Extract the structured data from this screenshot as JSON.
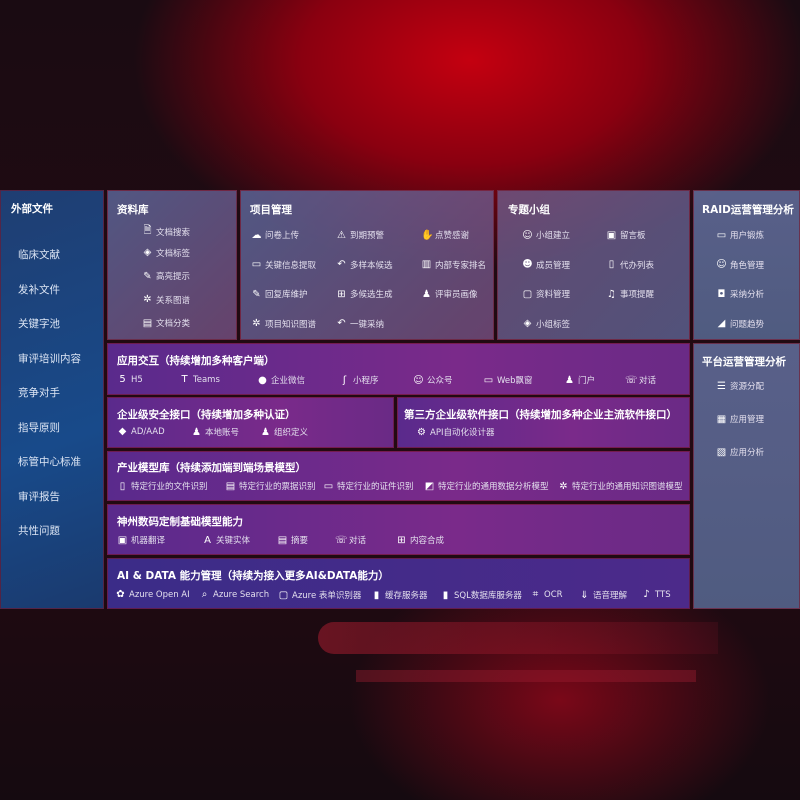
{
  "left": {
    "title": "外部文件",
    "items": [
      "临床文献",
      "发补文件",
      "关键字池",
      "审评培训内容",
      "竞争对手",
      "指导原则",
      "标管中心标准",
      "审评报告",
      "共性问题"
    ]
  },
  "library": {
    "title": "资料库",
    "items": [
      {
        "icon": "doc-search-icon",
        "label": "文档搜索"
      },
      {
        "icon": "tag-icon",
        "label": "文档标签"
      },
      {
        "icon": "pen-icon",
        "label": "高亮提示"
      },
      {
        "icon": "graph-icon",
        "label": "关系图谱"
      },
      {
        "icon": "doc-list-icon",
        "label": "文档分类"
      }
    ]
  },
  "project": {
    "title": "项目管理",
    "items": [
      {
        "icon": "cloud-upload-icon",
        "label": "问卷上传"
      },
      {
        "icon": "alarm-icon",
        "label": "到期预警"
      },
      {
        "icon": "thumbs-up-icon",
        "label": "点赞感谢"
      },
      {
        "icon": "window-icon",
        "label": "关键信息提取"
      },
      {
        "icon": "reply-icon",
        "label": "多样本候选"
      },
      {
        "icon": "ranking-icon",
        "label": "内部专家排名"
      },
      {
        "icon": "edit-icon",
        "label": "回复库维护"
      },
      {
        "icon": "puzzle-icon",
        "label": "多候选生成"
      },
      {
        "icon": "user-icon",
        "label": "评审员画像"
      },
      {
        "icon": "graph-icon",
        "label": "项目知识图谱"
      },
      {
        "icon": "reply-icon",
        "label": "一键采纳"
      }
    ]
  },
  "group": {
    "title": "专题小组",
    "items": [
      {
        "icon": "users-icon",
        "label": "小组建立"
      },
      {
        "icon": "bbs-icon",
        "label": "留言板"
      },
      {
        "icon": "user-add-icon",
        "label": "成员管理"
      },
      {
        "icon": "clipboard-icon",
        "label": "代办列表"
      },
      {
        "icon": "folder-icon",
        "label": "资料管理"
      },
      {
        "icon": "bell-icon",
        "label": "事项提醒"
      },
      {
        "icon": "tag-icon",
        "label": "小组标签"
      }
    ]
  },
  "raid": {
    "title": "RAID运营管理分析",
    "items": [
      {
        "icon": "id-card-icon",
        "label": "用户锻炼"
      },
      {
        "icon": "users-icon",
        "label": "角色管理"
      },
      {
        "icon": "qa-icon",
        "label": "采纳分析"
      },
      {
        "icon": "chart-icon",
        "label": "问题趋势"
      }
    ]
  },
  "platform": {
    "title": "平台运营管理分析",
    "items": [
      {
        "icon": "list-icon",
        "label": "资源分配"
      },
      {
        "icon": "apps-icon",
        "label": "应用管理"
      },
      {
        "icon": "analysis-icon",
        "label": "应用分析"
      }
    ]
  },
  "app": {
    "title": "应用交互（持续增加多种客户端）",
    "items": [
      {
        "icon": "html5-icon",
        "label": "H5"
      },
      {
        "icon": "teams-icon",
        "label": "Teams"
      },
      {
        "icon": "wechat-work-icon",
        "label": "企业微信"
      },
      {
        "icon": "miniprogram-icon",
        "label": "小程序"
      },
      {
        "icon": "official-account-icon",
        "label": "公众号"
      },
      {
        "icon": "window-icon",
        "label": "Web飘窗"
      },
      {
        "icon": "portal-icon",
        "label": "门户"
      },
      {
        "icon": "chat-icon",
        "label": "对话"
      }
    ]
  },
  "security": {
    "title": "企业级安全接口（持续增加多种认证）",
    "items": [
      {
        "icon": "aad-icon",
        "label": "AD/AAD"
      },
      {
        "icon": "local-account-icon",
        "label": "本地账号"
      },
      {
        "icon": "org-icon",
        "label": "组织定义"
      }
    ]
  },
  "third": {
    "title": "第三方企业级软件接口（持续增加多种企业主流软件接口）",
    "items": [
      {
        "icon": "gear-icon",
        "label": "API自动化设计器"
      }
    ]
  },
  "industry": {
    "title": "产业模型库（持续添加端到端场景模型）",
    "items": [
      {
        "icon": "doc-icon",
        "label": "特定行业的文件识别"
      },
      {
        "icon": "receipt-icon",
        "label": "特定行业的票据识别"
      },
      {
        "icon": "id-card-icon",
        "label": "特定行业的证件识别"
      },
      {
        "icon": "data-chart-icon",
        "label": "特定行业的通用数据分析模型"
      },
      {
        "icon": "graph-icon",
        "label": "特定行业的通用知识图谱模型"
      }
    ]
  },
  "base": {
    "title": "神州数码定制基础模型能力",
    "items": [
      {
        "icon": "translate-icon",
        "label": "机器翻译"
      },
      {
        "icon": "entity-icon",
        "label": "关键实体"
      },
      {
        "icon": "summary-icon",
        "label": "摘要"
      },
      {
        "icon": "chat-icon",
        "label": "对话"
      },
      {
        "icon": "puzzle-icon",
        "label": "内容合成"
      }
    ]
  },
  "ai": {
    "title": "AI & DATA 能力管理（持续为接入更多AI&DATA能力）",
    "items": [
      {
        "icon": "openai-icon",
        "label": "Azure Open AI"
      },
      {
        "icon": "search-doc-icon",
        "label": "Azure Search"
      },
      {
        "icon": "form-icon",
        "label": "Azure 表单识别器"
      },
      {
        "icon": "cache-icon",
        "label": "缓存服务器"
      },
      {
        "icon": "database-icon",
        "label": "SQL数据库服务器"
      },
      {
        "icon": "ocr-icon",
        "label": "OCR"
      },
      {
        "icon": "speech-icon",
        "label": "语音理解"
      },
      {
        "icon": "tts-icon",
        "label": "TTS"
      }
    ]
  }
}
